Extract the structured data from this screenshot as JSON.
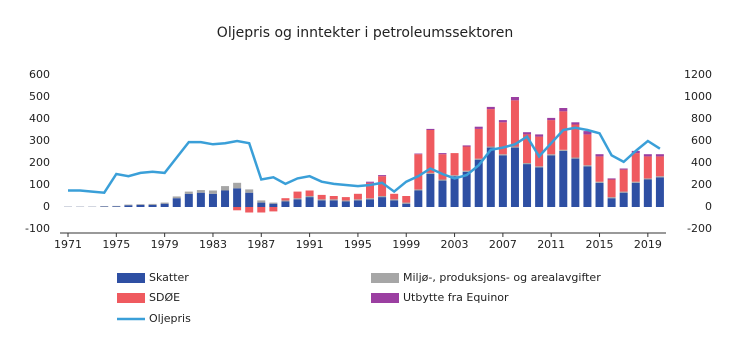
{
  "chart_data": {
    "type": "bar",
    "title": "Oljepris og inntekter i petroleumssektoren",
    "categories": [
      "1971",
      null,
      null,
      null,
      "1975",
      null,
      null,
      null,
      "1979",
      null,
      null,
      null,
      "1983",
      null,
      null,
      null,
      "1987",
      null,
      null,
      null,
      "1991",
      null,
      null,
      null,
      "1995",
      null,
      null,
      null,
      "1999",
      null,
      null,
      null,
      "2003",
      null,
      null,
      null,
      "2007",
      null,
      null,
      null,
      "2011",
      null,
      null,
      null,
      "2015",
      null,
      null,
      null,
      "2019",
      null
    ],
    "series": [
      {
        "name": "Skatter",
        "color": "#2e4fa3",
        "values": [
          1,
          1,
          1,
          2,
          3,
          8,
          10,
          10,
          15,
          40,
          60,
          65,
          60,
          75,
          85,
          65,
          20,
          15,
          25,
          35,
          45,
          30,
          30,
          25,
          30,
          35,
          45,
          30,
          15,
          75,
          150,
          120,
          140,
          160,
          215,
          270,
          235,
          270,
          195,
          180,
          235,
          255,
          220,
          185,
          110,
          40,
          65,
          110,
          125,
          135
        ]
      },
      {
        "name": "Miljø-, produksjons- og arealavgifter",
        "color": "#a6a6a6",
        "values": [
          1,
          1,
          1,
          2,
          2,
          3,
          3,
          4,
          5,
          8,
          10,
          12,
          15,
          20,
          25,
          15,
          10,
          5,
          5,
          5,
          5,
          5,
          5,
          5,
          5,
          5,
          5,
          5,
          5,
          5,
          5,
          5,
          5,
          5,
          5,
          5,
          5,
          5,
          5,
          5,
          5,
          5,
          5,
          5,
          5,
          5,
          5,
          5,
          5,
          5
        ]
      },
      {
        "name": "SDØE",
        "color": "#ef5a5f",
        "values": [
          0,
          0,
          0,
          0,
          0,
          0,
          0,
          0,
          0,
          0,
          0,
          0,
          0,
          0,
          -15,
          -25,
          -25,
          -20,
          10,
          30,
          25,
          20,
          15,
          15,
          25,
          70,
          90,
          25,
          30,
          160,
          195,
          115,
          100,
          110,
          135,
          170,
          145,
          210,
          130,
          135,
          155,
          175,
          150,
          140,
          115,
          80,
          100,
          130,
          100,
          90
        ]
      },
      {
        "name": "Utbytte fra Equinor",
        "color": "#9b3fa1",
        "values": [
          0,
          0,
          0,
          0,
          0,
          0,
          0,
          0,
          0,
          0,
          0,
          0,
          0,
          0,
          0,
          0,
          0,
          0,
          0,
          0,
          0,
          0,
          0,
          0,
          0,
          5,
          5,
          0,
          0,
          3,
          5,
          5,
          0,
          5,
          10,
          10,
          10,
          15,
          10,
          10,
          10,
          15,
          10,
          15,
          10,
          5,
          5,
          10,
          10,
          10
        ]
      },
      {
        "name": "Oljepris",
        "color": "#3a9fd8",
        "type": "line",
        "axis": "y2",
        "values": [
          150,
          150,
          140,
          130,
          300,
          280,
          310,
          320,
          310,
          450,
          590,
          590,
          570,
          580,
          600,
          580,
          250,
          270,
          210,
          260,
          280,
          230,
          210,
          200,
          190,
          200,
          220,
          140,
          230,
          280,
          350,
          300,
          260,
          290,
          380,
          520,
          540,
          570,
          640,
          460,
          580,
          700,
          720,
          700,
          670,
          470,
          410,
          510,
          600,
          530
        ]
      }
    ],
    "ylim": [
      -100,
      600
    ],
    "yticks": [
      -100,
      0,
      100,
      200,
      300,
      400,
      500,
      600
    ],
    "y2lim": [
      -200,
      1200
    ],
    "y2ticks": [
      -200,
      0,
      200,
      400,
      600,
      800,
      1000,
      1200
    ],
    "grid": false
  }
}
